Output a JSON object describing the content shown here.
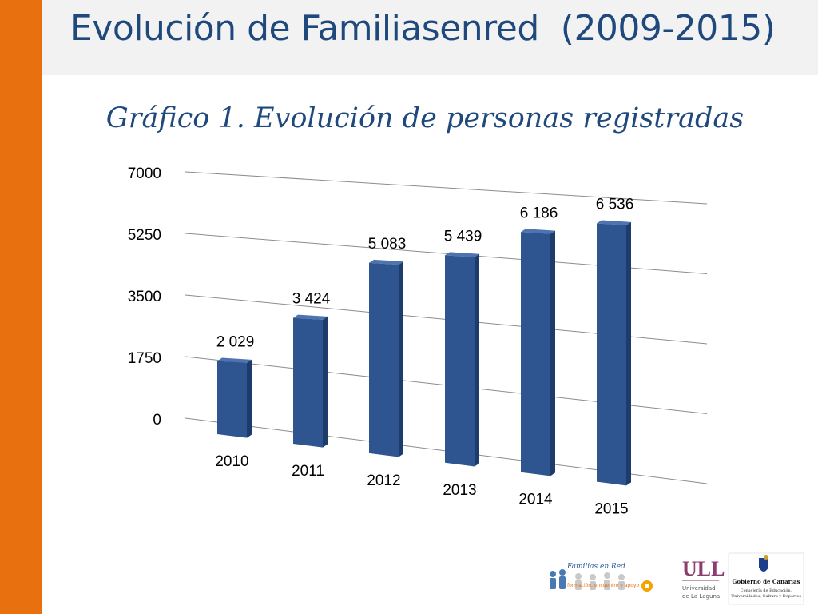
{
  "slide": {
    "title": "Evolución de Familiasenred  (2009-2015)",
    "accent_color": "#e8700e",
    "title_color": "#1f497d"
  },
  "chart_data": {
    "type": "bar",
    "title": "Gráfico 1. Evolución de personas registradas",
    "categories": [
      "2010",
      "2011",
      "2012",
      "2013",
      "2014",
      "2015"
    ],
    "values": [
      2029,
      3424,
      5083,
      5439,
      6186,
      6536
    ],
    "value_labels": [
      "2 029",
      "3 424",
      "5 083",
      "5 439",
      "6 186",
      "6 536"
    ],
    "y_ticks": [
      "0",
      "1750",
      "3500",
      "5250",
      "7000"
    ],
    "ylim": [
      0,
      7000
    ],
    "grid": true,
    "style": "3d-perspective",
    "bar_color": "#2f5590"
  },
  "logos": {
    "familias": {
      "name": "Familias en Red",
      "tagline": "formación, encuentro y apoyo"
    },
    "ull": {
      "mark": "ULL",
      "line1": "Universidad",
      "line2": "de La Laguna"
    },
    "gobierno": {
      "name": "Gobierno de Canarias",
      "line1": "Consejería de Educación,",
      "line2": "Universidades, Cultura y Deportes"
    }
  }
}
